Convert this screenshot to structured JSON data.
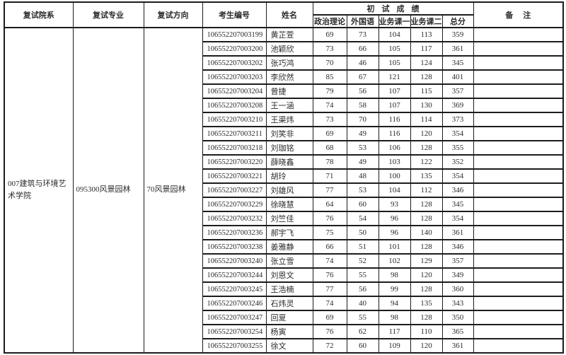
{
  "page": {
    "background": "#ffffff",
    "text_color": "#2a2a2a",
    "border_color": "#1c1c1c"
  },
  "table": {
    "headers": {
      "dept": "复试院系",
      "major": "复试专业",
      "direction": "复试方向",
      "candidate_no": "考生编号",
      "name": "姓名",
      "initial_scores_group": "初试成绩",
      "score_cols": [
        "政治理论",
        "外国语",
        "业务课一",
        "业务课二",
        "总分"
      ],
      "remarks": "备注"
    },
    "merged": {
      "dept": "007建筑与环境艺术学院",
      "major": "095300风景园林",
      "direction": "70风景园林"
    },
    "rows": [
      {
        "no": "106552207003199",
        "name": "黄芷萱",
        "politics": 69,
        "foreign": 73,
        "course1": 104,
        "course2": 113,
        "total": 359,
        "remark": ""
      },
      {
        "no": "106552207003200",
        "name": "池颖欣",
        "politics": 73,
        "foreign": 66,
        "course1": 105,
        "course2": 117,
        "total": 361,
        "remark": ""
      },
      {
        "no": "106552207003202",
        "name": "张巧鸿",
        "politics": 70,
        "foreign": 46,
        "course1": 105,
        "course2": 124,
        "total": 345,
        "remark": ""
      },
      {
        "no": "106552207003203",
        "name": "李欣然",
        "politics": 85,
        "foreign": 67,
        "course1": 121,
        "course2": 128,
        "total": 401,
        "remark": ""
      },
      {
        "no": "106552207003204",
        "name": "曾捷",
        "politics": 79,
        "foreign": 56,
        "course1": 107,
        "course2": 115,
        "total": 357,
        "remark": ""
      },
      {
        "no": "106552207003208",
        "name": "王一涵",
        "politics": 74,
        "foreign": 58,
        "course1": 107,
        "course2": 130,
        "total": 369,
        "remark": ""
      },
      {
        "no": "106552207003210",
        "name": "王渠炜",
        "politics": 73,
        "foreign": 70,
        "course1": 116,
        "course2": 114,
        "total": 373,
        "remark": ""
      },
      {
        "no": "106552207003211",
        "name": "刘笑非",
        "politics": 69,
        "foreign": 49,
        "course1": 116,
        "course2": 120,
        "total": 354,
        "remark": ""
      },
      {
        "no": "106552207003218",
        "name": "刘珈铭",
        "politics": 68,
        "foreign": 53,
        "course1": 106,
        "course2": 128,
        "total": 355,
        "remark": ""
      },
      {
        "no": "106552207003220",
        "name": "薛晓鑫",
        "politics": 78,
        "foreign": 49,
        "course1": 103,
        "course2": 122,
        "total": 352,
        "remark": ""
      },
      {
        "no": "106552207003221",
        "name": "胡玲",
        "politics": 71,
        "foreign": 48,
        "course1": 100,
        "course2": 135,
        "total": 354,
        "remark": ""
      },
      {
        "no": "106552207003227",
        "name": "刘雄风",
        "politics": 77,
        "foreign": 53,
        "course1": 104,
        "course2": 112,
        "total": 346,
        "remark": ""
      },
      {
        "no": "106552207003229",
        "name": "徐晓慧",
        "politics": 64,
        "foreign": 60,
        "course1": 93,
        "course2": 128,
        "total": 345,
        "remark": ""
      },
      {
        "no": "106552207003232",
        "name": "刘竺佳",
        "politics": 76,
        "foreign": 54,
        "course1": 96,
        "course2": 128,
        "total": 354,
        "remark": ""
      },
      {
        "no": "106552207003236",
        "name": "郝宇飞",
        "politics": 75,
        "foreign": 50,
        "course1": 96,
        "course2": 140,
        "total": 361,
        "remark": ""
      },
      {
        "no": "106552207003238",
        "name": "姜雅静",
        "politics": 66,
        "foreign": 51,
        "course1": 101,
        "course2": 128,
        "total": 346,
        "remark": ""
      },
      {
        "no": "106552207003240",
        "name": "张立雪",
        "politics": 74,
        "foreign": 52,
        "course1": 102,
        "course2": 129,
        "total": 357,
        "remark": ""
      },
      {
        "no": "106552207003244",
        "name": "刘恩文",
        "politics": 76,
        "foreign": 55,
        "course1": 98,
        "course2": 120,
        "total": 349,
        "remark": ""
      },
      {
        "no": "106552207003245",
        "name": "王浩楠",
        "politics": 77,
        "foreign": 56,
        "course1": 99,
        "course2": 128,
        "total": 360,
        "remark": ""
      },
      {
        "no": "106552207003246",
        "name": "石炜灵",
        "politics": 74,
        "foreign": 40,
        "course1": 94,
        "course2": 135,
        "total": 343,
        "remark": ""
      },
      {
        "no": "106552207003247",
        "name": "回夏",
        "politics": 69,
        "foreign": 55,
        "course1": 98,
        "course2": 128,
        "total": 350,
        "remark": ""
      },
      {
        "no": "106552207003254",
        "name": "杨寅",
        "politics": 76,
        "foreign": 62,
        "course1": 117,
        "course2": 110,
        "total": 365,
        "remark": ""
      },
      {
        "no": "106552207003255",
        "name": "徐文",
        "politics": 72,
        "foreign": 60,
        "course1": 109,
        "course2": 120,
        "total": 361,
        "remark": ""
      }
    ]
  }
}
